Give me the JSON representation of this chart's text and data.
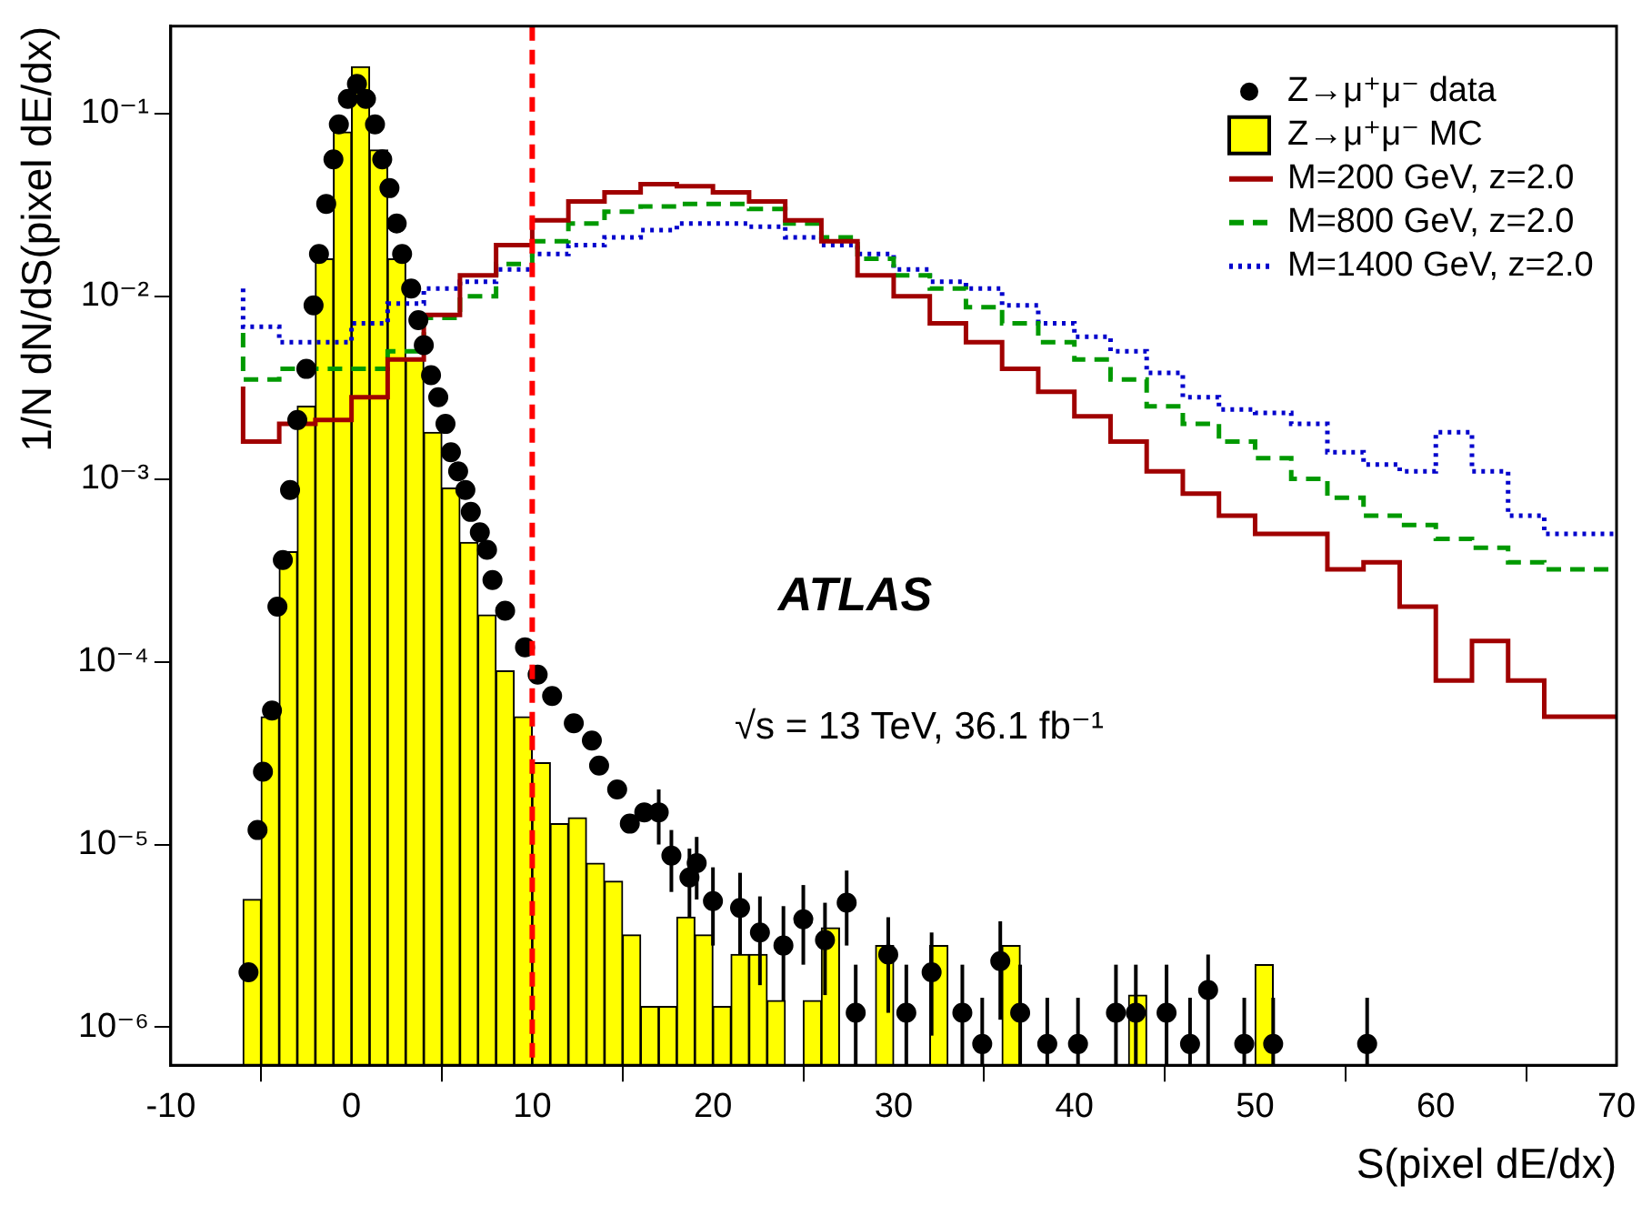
{
  "chart_data": {
    "type": "histogram",
    "xlabel": "S(pixel dE/dx)",
    "ylabel": "1/N dN/dS(pixel dE/dx)",
    "xlim": [
      -10,
      70
    ],
    "xticks": [
      -10,
      0,
      10,
      20,
      30,
      40,
      50,
      60,
      70
    ],
    "ylim": [
      6.2e-07,
      0.3
    ],
    "log": "y",
    "yticks": [
      {
        "value": 1e-06,
        "label": "10⁻⁶"
      },
      {
        "value": 1e-05,
        "label": "10⁻⁵"
      },
      {
        "value": 0.0001,
        "label": "10⁻⁴"
      },
      {
        "value": 0.001,
        "label": "10⁻³"
      },
      {
        "value": 0.01,
        "label": "10⁻²"
      },
      {
        "value": 0.1,
        "label": "10⁻¹"
      }
    ],
    "grid": false,
    "legend": "top right",
    "annotations": [
      "ATLAS",
      "√s = 13 TeV, 36.1 fb⁻¹"
    ],
    "ref_lines": [
      {
        "axis": "x",
        "value": 10,
        "color": "#ff0000",
        "line_style": "dashed"
      }
    ],
    "series": [
      {
        "name": "Z→μ⁺μ⁻ data",
        "type": "scatter",
        "marker": "circle",
        "color": "#000000",
        "x": [
          -5.7,
          -5.2,
          -4.9,
          -4.4,
          -4.1,
          -3.8,
          -3.4,
          -3.0,
          -2.5,
          -2.1,
          -1.8,
          -1.4,
          -1.0,
          -0.7,
          -0.2,
          0.3,
          0.8,
          1.3,
          1.7,
          2.1,
          2.5,
          2.8,
          3.3,
          3.7,
          4.0,
          4.4,
          4.8,
          5.2,
          5.5,
          5.9,
          6.3,
          6.6,
          7.1,
          7.5,
          7.8,
          8.5,
          9.6,
          10.3,
          11.1,
          12.3,
          13.3,
          13.7,
          14.7,
          15.4,
          16.2,
          17.0,
          17.7,
          18.7,
          19.1,
          20.0,
          21.5,
          22.6,
          23.9,
          25.0,
          26.2,
          27.4,
          27.9,
          29.7,
          30.7,
          32.1,
          33.8,
          34.9,
          35.9,
          37.0,
          38.5,
          40.2,
          42.3,
          43.4,
          45.1,
          46.4,
          47.4,
          49.4,
          51.0,
          56.2
        ],
        "values": [
          2e-06,
          1.2e-05,
          2.5e-05,
          5.4e-05,
          0.0002,
          0.00036,
          0.00087,
          0.0021,
          0.004,
          0.0089,
          0.017,
          0.032,
          0.056,
          0.087,
          0.12,
          0.145,
          0.12,
          0.087,
          0.056,
          0.039,
          0.025,
          0.017,
          0.011,
          0.0074,
          0.0054,
          0.0037,
          0.0028,
          0.002,
          0.0014,
          0.0011,
          0.00087,
          0.00066,
          0.00051,
          0.00041,
          0.00028,
          0.00019,
          0.00012,
          8.5e-05,
          6.5e-05,
          4.6e-05,
          3.7e-05,
          2.7e-05,
          2e-05,
          1.3e-05,
          1.5e-05,
          1.5e-05,
          8.7e-06,
          6.6e-06,
          7.9e-06,
          4.9e-06,
          4.5e-06,
          3.3e-06,
          2.8e-06,
          3.9e-06,
          3e-06,
          4.8e-06,
          1.2e-06,
          2.5e-06,
          1.2e-06,
          2e-06,
          1.2e-06,
          8.1e-07,
          2.3e-06,
          1.2e-06,
          8.1e-07,
          8.1e-07,
          1.2e-06,
          1.2e-06,
          1.2e-06,
          8.1e-07,
          1.6e-06,
          8.1e-07,
          8.1e-07,
          8.1e-07
        ],
        "errors": [
          null,
          null,
          null,
          null,
          null,
          null,
          null,
          null,
          null,
          null,
          null,
          null,
          null,
          null,
          null,
          null,
          null,
          null,
          null,
          null,
          null,
          null,
          null,
          null,
          null,
          null,
          null,
          null,
          null,
          null,
          null,
          null,
          null,
          null,
          null,
          null,
          null,
          null,
          null,
          null,
          null,
          null,
          null,
          null,
          null,
          [
            1e-05,
            2e-05
          ],
          [
            5.5e-06,
            1.2e-05
          ],
          [
            4e-06,
            9.5e-06
          ],
          [
            5e-06,
            1.1e-05
          ],
          [
            2.8e-06,
            7.5e-06
          ],
          [
            2.5e-06,
            7e-06
          ],
          [
            1.7e-06,
            5.2e-06
          ],
          [
            1.4e-06,
            4.6e-06
          ],
          [
            2.2e-06,
            6e-06
          ],
          [
            1.5e-06,
            4.8e-06
          ],
          [
            2.8e-06,
            7.2e-06
          ],
          [
            6.2e-07,
            2.2e-06
          ],
          [
            1.2e-06,
            4e-06
          ],
          [
            6.2e-07,
            2.2e-06
          ],
          [
            9e-07,
            3.3e-06
          ],
          [
            6.2e-07,
            2.2e-06
          ],
          [
            6.2e-07,
            1.45e-06
          ],
          [
            1.1e-06,
            3.8e-06
          ],
          [
            6.2e-07,
            2.2e-06
          ],
          [
            6.2e-07,
            1.45e-06
          ],
          [
            6.2e-07,
            1.45e-06
          ],
          [
            6.2e-07,
            2.2e-06
          ],
          [
            6.2e-07,
            2.2e-06
          ],
          [
            6.2e-07,
            2.2e-06
          ],
          [
            6.2e-07,
            1.45e-06
          ],
          [
            6.2e-07,
            2.5e-06
          ],
          [
            6.2e-07,
            1.45e-06
          ],
          [
            6.2e-07,
            1.45e-06
          ],
          [
            6.2e-07,
            1.45e-06
          ]
        ]
      },
      {
        "name": "Z→μ⁺μ⁻ MC",
        "color": "#ffff00",
        "bins": [
          -6,
          -5,
          -4,
          -3,
          -2,
          -1,
          0,
          1,
          2,
          3,
          4,
          5,
          6,
          7,
          8,
          9,
          10,
          11,
          12,
          13,
          14,
          15,
          16,
          17,
          18,
          19,
          20,
          21,
          22,
          23,
          24,
          25,
          26,
          27,
          28,
          29,
          30,
          31,
          32,
          33,
          34,
          35,
          36,
          37,
          38,
          39,
          40,
          41,
          42,
          43,
          44,
          45,
          46,
          47,
          48,
          49,
          50,
          51
        ],
        "values": [
          5e-06,
          5e-05,
          0.0004,
          0.0025,
          0.016,
          0.079,
          0.18,
          0.063,
          0.016,
          0.0045,
          0.0018,
          0.00089,
          0.00045,
          0.00018,
          8.9e-05,
          5e-05,
          2.8e-05,
          1.3e-05,
          1.4e-05,
          7.9e-06,
          6.3e-06,
          3.2e-06,
          1.3e-06,
          1.3e-06,
          4e-06,
          3.2e-06,
          1.3e-06,
          2.5e-06,
          2.5e-06,
          1.4e-06,
          null,
          1.4e-06,
          3.5e-06,
          null,
          null,
          2.8e-06,
          null,
          null,
          2.8e-06,
          null,
          null,
          null,
          2.8e-06,
          null,
          null,
          null,
          null,
          null,
          null,
          1.5e-06,
          null,
          null,
          null,
          null,
          null,
          null,
          2.2e-06
        ]
      },
      {
        "name": "M=200 GeV, z=2.0",
        "type": "step",
        "line_style": "solid",
        "color": "#a00000",
        "x": [
          -6,
          -4,
          -2,
          0,
          2,
          4,
          6,
          8,
          10,
          12,
          14,
          16,
          18,
          20,
          22,
          24,
          26,
          28,
          30,
          32,
          34,
          36,
          38,
          40,
          42,
          44,
          46,
          48,
          50,
          52,
          54,
          56,
          58,
          60,
          62,
          64,
          66,
          68,
          70
        ],
        "values": [
          0.0032,
          0.0016,
          0.002,
          0.0021,
          0.0028,
          0.0045,
          0.0079,
          0.013,
          0.019,
          0.026,
          0.033,
          0.037,
          0.041,
          0.04,
          0.037,
          0.033,
          0.026,
          0.02,
          0.013,
          0.01,
          0.0071,
          0.0056,
          0.004,
          0.003,
          0.0022,
          0.0016,
          0.0011,
          0.00083,
          0.00063,
          0.0005,
          0.0005,
          0.00032,
          0.00035,
          0.0002,
          7.9e-05,
          0.00013,
          7.9e-05,
          5e-05,
          5e-05
        ]
      },
      {
        "name": "M=800 GeV, z=2.0",
        "type": "step",
        "line_style": "dashed",
        "color": "#009900",
        "x": [
          -6,
          -4,
          -2,
          0,
          2,
          4,
          6,
          8,
          10,
          12,
          14,
          16,
          18,
          20,
          22,
          24,
          26,
          28,
          30,
          32,
          34,
          36,
          38,
          40,
          42,
          44,
          46,
          48,
          50,
          52,
          54,
          56,
          58,
          60,
          62,
          64,
          66,
          68,
          70
        ],
        "values": [
          0.0063,
          0.0035,
          0.004,
          0.004,
          0.004,
          0.005,
          0.0076,
          0.01,
          0.015,
          0.02,
          0.025,
          0.029,
          0.031,
          0.032,
          0.032,
          0.03,
          0.025,
          0.021,
          0.016,
          0.013,
          0.011,
          0.0087,
          0.0071,
          0.0056,
          0.0045,
          0.0035,
          0.0025,
          0.002,
          0.0016,
          0.0013,
          0.001,
          0.00079,
          0.00063,
          0.00056,
          0.00047,
          0.00042,
          0.00035,
          0.00032,
          0.00032
        ]
      },
      {
        "name": "M=1400 GeV, z=2.0",
        "type": "step",
        "line_style": "dotted",
        "color": "#0000cc",
        "x": [
          -6,
          -4,
          -2,
          0,
          2,
          4,
          6,
          8,
          10,
          12,
          14,
          16,
          18,
          20,
          22,
          24,
          26,
          28,
          30,
          32,
          34,
          36,
          38,
          40,
          42,
          44,
          46,
          48,
          50,
          52,
          54,
          56,
          58,
          60,
          62,
          64,
          66,
          68,
          70
        ],
        "values": [
          0.011,
          0.0068,
          0.0056,
          0.0056,
          0.0071,
          0.0091,
          0.011,
          0.012,
          0.014,
          0.017,
          0.019,
          0.021,
          0.023,
          0.025,
          0.025,
          0.024,
          0.021,
          0.019,
          0.017,
          0.014,
          0.012,
          0.011,
          0.0089,
          0.0071,
          0.006,
          0.005,
          0.0038,
          0.0028,
          0.0024,
          0.0023,
          0.002,
          0.0014,
          0.0012,
          0.0011,
          0.0018,
          0.0011,
          0.00063,
          0.0005,
          0.0005
        ]
      }
    ]
  }
}
